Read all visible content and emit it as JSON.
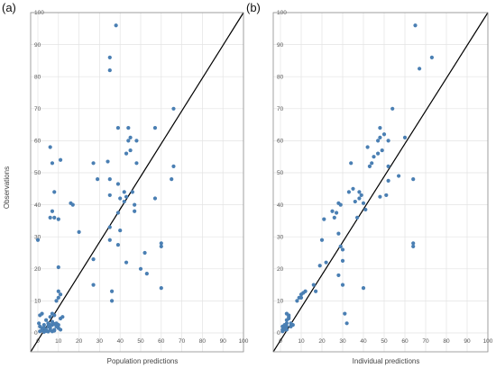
{
  "chart_data": [
    {
      "type": "scatter",
      "panel": "(a)",
      "xlabel": "Population predictions",
      "ylabel": "Observations",
      "xlim": [
        0,
        100
      ],
      "ylim": [
        0,
        100
      ],
      "ticks": [
        "0",
        "10",
        "20",
        "30",
        "40",
        "50",
        "60",
        "70",
        "80",
        "90",
        "100"
      ],
      "grid": true,
      "reference_line": "identity",
      "marker_color": "#4a7fb3",
      "line_color": "#000000",
      "points": [
        [
          0,
          29
        ],
        [
          1,
          5.5
        ],
        [
          2,
          6
        ],
        [
          0.5,
          3
        ],
        [
          1,
          2
        ],
        [
          2,
          1.5
        ],
        [
          3,
          2.5
        ],
        [
          4,
          1
        ],
        [
          5,
          2
        ],
        [
          6,
          1.5
        ],
        [
          7,
          2.5
        ],
        [
          8,
          1
        ],
        [
          9,
          2
        ],
        [
          10,
          1.5
        ],
        [
          11,
          1
        ],
        [
          1,
          0.5
        ],
        [
          2,
          0.8
        ],
        [
          3,
          0.3
        ],
        [
          4,
          0.6
        ],
        [
          5,
          0.4
        ],
        [
          6,
          0.9
        ],
        [
          7,
          0.5
        ],
        [
          8,
          0.7
        ],
        [
          3,
          1.5
        ],
        [
          5,
          3
        ],
        [
          6,
          2.5
        ],
        [
          7,
          3.5
        ],
        [
          8,
          2.8
        ],
        [
          4,
          4
        ],
        [
          6,
          5
        ],
        [
          7,
          6
        ],
        [
          8,
          5.5
        ],
        [
          9,
          3
        ],
        [
          10,
          2.5
        ],
        [
          11,
          4.5
        ],
        [
          12,
          5
        ],
        [
          10,
          11
        ],
        [
          11,
          12
        ],
        [
          10,
          13
        ],
        [
          9,
          10
        ],
        [
          6,
          58
        ],
        [
          7,
          53
        ],
        [
          8,
          44
        ],
        [
          7,
          38
        ],
        [
          8,
          36
        ],
        [
          6,
          36
        ],
        [
          10,
          35.5
        ],
        [
          11,
          54
        ],
        [
          10,
          20.5
        ],
        [
          16,
          40.5
        ],
        [
          17,
          40
        ],
        [
          20,
          31.5
        ],
        [
          27,
          53
        ],
        [
          29,
          48
        ],
        [
          27,
          15
        ],
        [
          27,
          23
        ],
        [
          34,
          53.5
        ],
        [
          35,
          48
        ],
        [
          35,
          43
        ],
        [
          35,
          33
        ],
        [
          35,
          29
        ],
        [
          36,
          13
        ],
        [
          36,
          10
        ],
        [
          35,
          86
        ],
        [
          35,
          82
        ],
        [
          38,
          96
        ],
        [
          39,
          64
        ],
        [
          39,
          46.5
        ],
        [
          39,
          37.5
        ],
        [
          40,
          42
        ],
        [
          40,
          32
        ],
        [
          39,
          27.5
        ],
        [
          42,
          44
        ],
        [
          42,
          41
        ],
        [
          43,
          42.5
        ],
        [
          44,
          64
        ],
        [
          44,
          60
        ],
        [
          43,
          56
        ],
        [
          45,
          57
        ],
        [
          45,
          61
        ],
        [
          46,
          44
        ],
        [
          47,
          38
        ],
        [
          47,
          40
        ],
        [
          48,
          60
        ],
        [
          48,
          53
        ],
        [
          43,
          22
        ],
        [
          50,
          20
        ],
        [
          52,
          25
        ],
        [
          53,
          18.5
        ],
        [
          57,
          64
        ],
        [
          57,
          42
        ],
        [
          60,
          28
        ],
        [
          60,
          27
        ],
        [
          60,
          14
        ],
        [
          65,
          48
        ],
        [
          66,
          52
        ],
        [
          66,
          70
        ]
      ]
    },
    {
      "type": "scatter",
      "panel": "(b)",
      "xlabel": "Individual predictions",
      "ylabel": "",
      "xlim": [
        0,
        100
      ],
      "ylim": [
        0,
        100
      ],
      "ticks": [
        "0",
        "10",
        "20",
        "30",
        "40",
        "50",
        "60",
        "70",
        "80",
        "90",
        "100"
      ],
      "grid": true,
      "reference_line": "identity",
      "marker_color": "#4a7fb3",
      "line_color": "#000000",
      "points": [
        [
          1,
          0.5
        ],
        [
          1,
          1
        ],
        [
          2,
          1.5
        ],
        [
          2,
          1
        ],
        [
          3,
          2
        ],
        [
          3,
          3
        ],
        [
          3,
          4
        ],
        [
          4,
          4.5
        ],
        [
          4,
          5.5
        ],
        [
          3,
          6
        ],
        [
          4,
          5
        ],
        [
          5,
          3
        ],
        [
          5,
          2
        ],
        [
          6,
          2.5
        ],
        [
          2,
          2.5
        ],
        [
          1,
          2
        ],
        [
          3,
          1
        ],
        [
          8,
          10
        ],
        [
          9,
          11
        ],
        [
          10,
          12
        ],
        [
          11,
          12.5
        ],
        [
          10,
          11
        ],
        [
          12,
          13
        ],
        [
          16,
          15
        ],
        [
          17,
          13
        ],
        [
          19,
          21
        ],
        [
          20,
          29
        ],
        [
          21,
          35.5
        ],
        [
          22,
          22
        ],
        [
          25,
          38
        ],
        [
          26,
          36
        ],
        [
          28,
          40.5
        ],
        [
          27,
          37.5
        ],
        [
          29,
          40
        ],
        [
          28,
          31
        ],
        [
          29,
          27
        ],
        [
          30,
          26
        ],
        [
          28,
          18
        ],
        [
          30,
          22.5
        ],
        [
          30,
          15
        ],
        [
          31,
          6
        ],
        [
          32,
          3
        ],
        [
          33,
          44
        ],
        [
          34,
          53
        ],
        [
          35,
          45
        ],
        [
          36,
          41
        ],
        [
          37,
          36
        ],
        [
          38,
          42
        ],
        [
          39,
          43
        ],
        [
          38,
          44
        ],
        [
          40,
          40.5
        ],
        [
          41,
          38.5
        ],
        [
          40,
          14
        ],
        [
          42,
          58
        ],
        [
          43,
          52
        ],
        [
          44,
          53
        ],
        [
          45,
          55
        ],
        [
          47,
          56
        ],
        [
          47,
          60
        ],
        [
          48,
          64
        ],
        [
          48,
          61
        ],
        [
          49,
          57
        ],
        [
          50,
          62
        ],
        [
          48,
          42.5
        ],
        [
          51,
          43
        ],
        [
          52,
          60
        ],
        [
          52,
          52
        ],
        [
          52,
          47.5
        ],
        [
          54,
          70
        ],
        [
          57,
          49
        ],
        [
          60,
          61
        ],
        [
          64,
          48
        ],
        [
          64,
          28
        ],
        [
          64,
          27
        ],
        [
          65,
          96
        ],
        [
          67,
          82.5
        ],
        [
          73,
          86
        ]
      ]
    }
  ]
}
